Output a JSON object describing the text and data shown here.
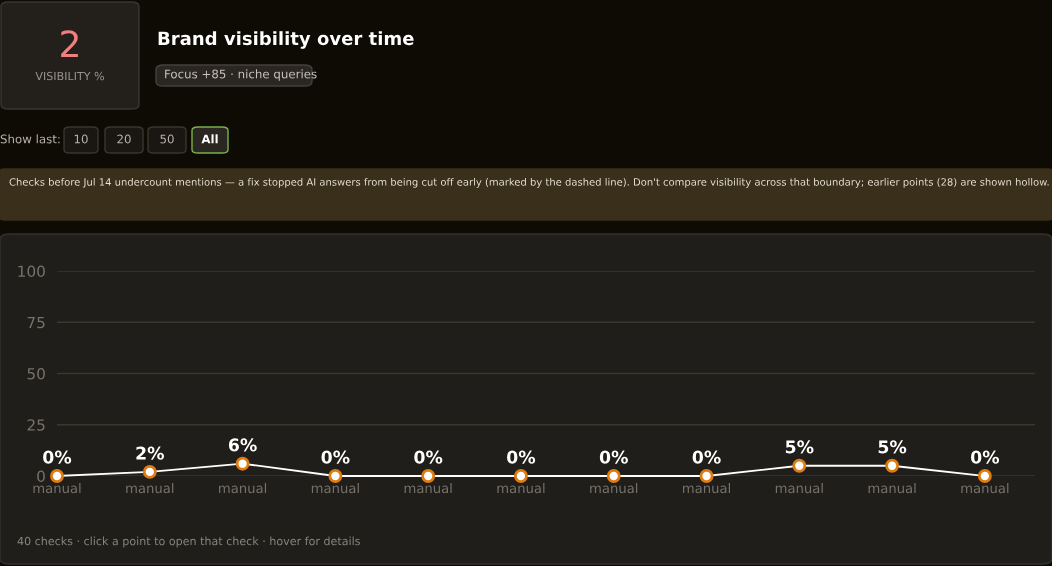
{
  "chart_data": {
    "type": "line",
    "title": "Brand visibility over time",
    "subtitle": "Focus +85 · niche queries",
    "categories": [
      "manual",
      "manual",
      "manual",
      "manual",
      "manual",
      "manual",
      "manual",
      "manual",
      "manual",
      "manual",
      "manual"
    ],
    "series": [
      {
        "color": "#ffffff",
        "values": [
          0,
          2,
          6,
          0,
          0,
          0,
          0,
          0,
          5,
          5,
          0
        ],
        "value_labels": [
          "0%",
          "2%",
          "6%",
          "0%",
          "0%",
          "0%",
          "0%",
          "0%",
          "5%",
          "5%",
          "0%"
        ]
      }
    ],
    "ylim": [
      0,
      100
    ],
    "yticks": [
      0,
      25,
      50,
      75,
      100
    ],
    "grid": "y",
    "marker": "circle",
    "line_style": "solid",
    "annotations": [
      "2",
      "VISIBILITY %",
      "Show last:",
      "10",
      "20",
      "50",
      "All",
      "Checks before Jul 14 undercount mentions — a fix stopped AI answers from being cut off early (marked by the dashed line). Don't compare visibility across that boundary; earlier points (28) are shown hollow.",
      "40 checks · click a point to open that check · hover for details"
    ]
  }
}
